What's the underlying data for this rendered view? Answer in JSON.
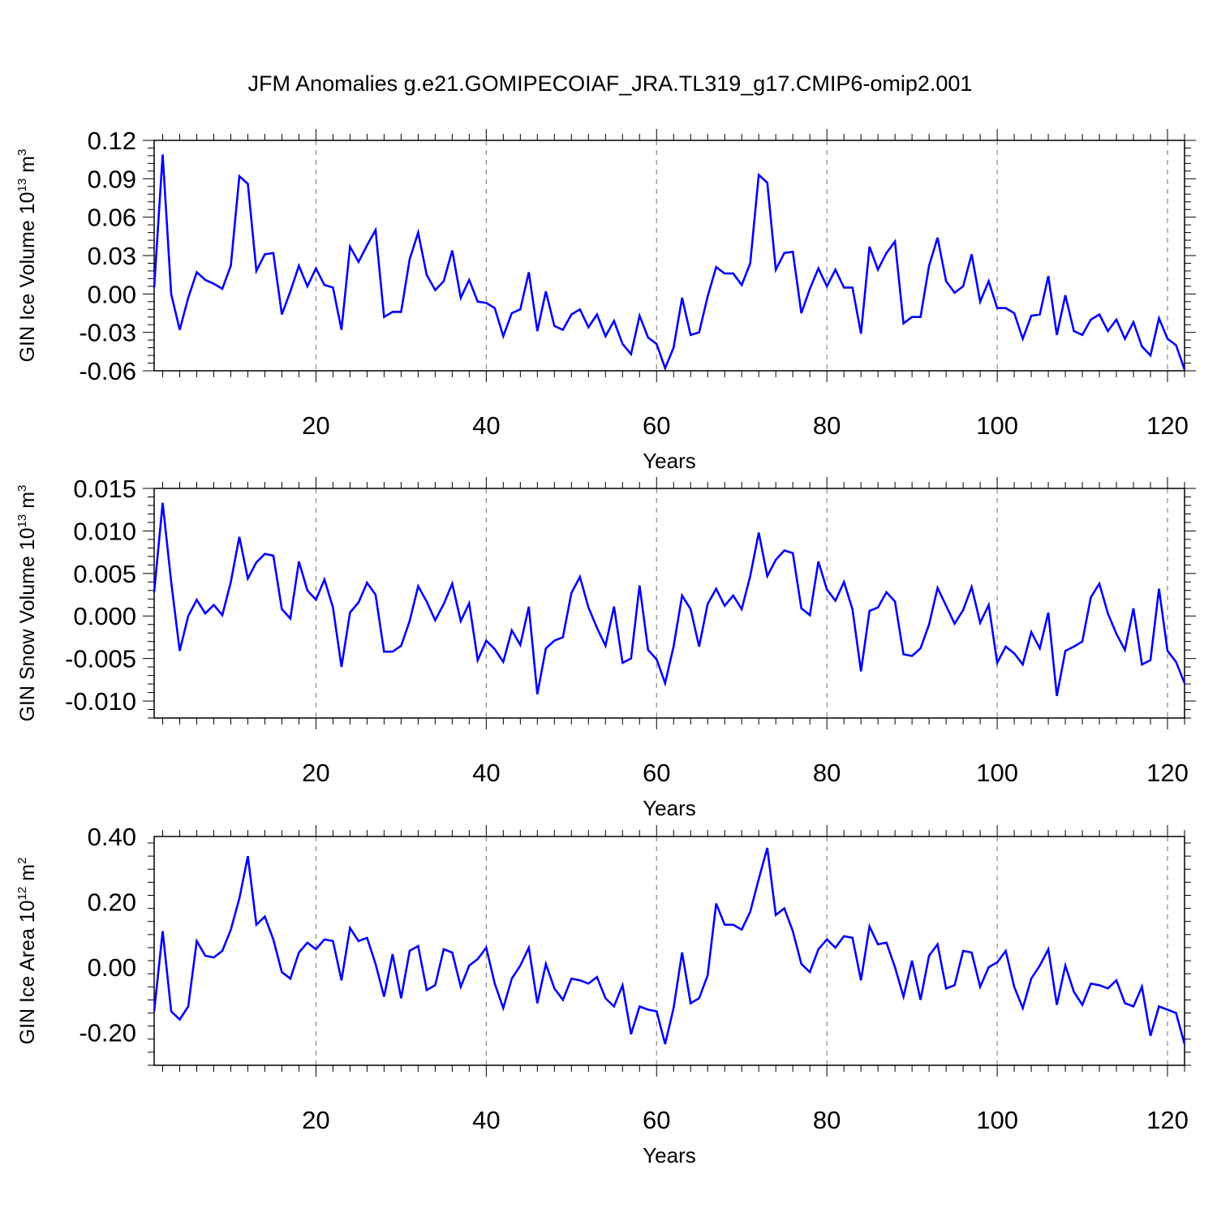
{
  "figure_title": "JFM Anomalies g.e21.GOMIPECOIAF_JRA.TL319_g17.CMIP6-omip2.001",
  "line_color": "#0000ff",
  "chart_data": [
    {
      "type": "line",
      "title": "",
      "xlabel": "Years",
      "ylabel_main": "GIN Ice Volume 10",
      "ylabel_exp": "13",
      "ylabel_unit": " m",
      "ylabel_unit_exp": "3",
      "xlim": [
        1,
        122
      ],
      "ylim": [
        -0.06,
        0.12
      ],
      "xticks": [
        20,
        40,
        60,
        80,
        100,
        120
      ],
      "xtick_labels": [
        "20",
        "40",
        "60",
        "80",
        "100",
        "120"
      ],
      "yticks": [
        -0.06,
        -0.03,
        0.0,
        0.03,
        0.06,
        0.09,
        0.12
      ],
      "ytick_labels": [
        "-0.06",
        "-0.03",
        "0.00",
        "0.03",
        "0.06",
        "0.09",
        "0.12"
      ],
      "grid_x": true,
      "series": [
        {
          "name": "GIN Ice Volume",
          "values": [
            0.005,
            0.109,
            0.0,
            -0.028,
            -0.003,
            0.017,
            0.011,
            0.008,
            0.004,
            0.022,
            0.092,
            0.086,
            0.018,
            0.031,
            0.032,
            -0.016,
            0.002,
            0.022,
            0.006,
            0.02,
            0.007,
            0.005,
            -0.028,
            0.037,
            0.025,
            0.038,
            0.05,
            -0.018,
            -0.014,
            -0.014,
            0.027,
            0.048,
            0.015,
            0.003,
            0.01,
            0.034,
            -0.003,
            0.011,
            -0.006,
            -0.007,
            -0.011,
            -0.033,
            -0.015,
            -0.012,
            0.017,
            -0.029,
            0.002,
            -0.025,
            -0.028,
            -0.016,
            -0.012,
            -0.026,
            -0.016,
            -0.033,
            -0.021,
            -0.039,
            -0.047,
            -0.017,
            -0.034,
            -0.039,
            -0.058,
            -0.042,
            -0.003,
            -0.032,
            -0.03,
            -0.002,
            0.021,
            0.016,
            0.016,
            0.007,
            0.024,
            0.093,
            0.087,
            0.019,
            0.032,
            0.033,
            -0.015,
            0.004,
            0.02,
            0.006,
            0.019,
            0.005,
            0.005,
            -0.031,
            0.037,
            0.019,
            0.032,
            0.041,
            -0.023,
            -0.018,
            -0.018,
            0.022,
            0.044,
            0.01,
            0.001,
            0.006,
            0.031,
            -0.006,
            0.01,
            -0.011,
            -0.011,
            -0.015,
            -0.035,
            -0.017,
            -0.016,
            0.014,
            -0.032,
            -0.001,
            -0.029,
            -0.032,
            -0.02,
            -0.016,
            -0.029,
            -0.02,
            -0.035,
            -0.022,
            -0.041,
            -0.048,
            -0.019,
            -0.035,
            -0.04,
            -0.059
          ]
        }
      ]
    },
    {
      "type": "line",
      "title": "",
      "xlabel": "Years",
      "ylabel_main": "GIN Snow Volume 10",
      "ylabel_exp": "13",
      "ylabel_unit": " m",
      "ylabel_unit_exp": "3",
      "xlim": [
        1,
        122
      ],
      "ylim": [
        -0.012,
        0.015
      ],
      "xticks": [
        20,
        40,
        60,
        80,
        100,
        120
      ],
      "xtick_labels": [
        "20",
        "40",
        "60",
        "80",
        "100",
        "120"
      ],
      "yticks": [
        -0.01,
        -0.005,
        0.0,
        0.005,
        0.01,
        0.015
      ],
      "ytick_labels": [
        "-0.010",
        "-0.005",
        "0.000",
        "0.005",
        "0.010",
        "0.015"
      ],
      "grid_x": true,
      "series": [
        {
          "name": "GIN Snow Volume",
          "values": [
            0.0028,
            0.0133,
            0.004,
            -0.0041,
            0.0,
            0.0019,
            0.0003,
            0.0013,
            0.0001,
            0.004,
            0.0093,
            0.0044,
            0.0063,
            0.0073,
            0.0071,
            0.0008,
            -0.0003,
            0.0064,
            0.003,
            0.0019,
            0.0043,
            0.001,
            -0.006,
            0.0004,
            0.0016,
            0.0039,
            0.0025,
            -0.0042,
            -0.0042,
            -0.0035,
            -0.0006,
            0.0035,
            0.0017,
            -0.0005,
            0.0014,
            0.0038,
            -0.0006,
            0.0015,
            -0.0052,
            -0.0029,
            -0.0039,
            -0.0054,
            -0.0017,
            -0.0034,
            0.0011,
            -0.0092,
            -0.0038,
            -0.0029,
            -0.0025,
            0.0027,
            0.0046,
            0.001,
            -0.0014,
            -0.0035,
            0.0011,
            -0.0055,
            -0.005,
            0.0036,
            -0.004,
            -0.0051,
            -0.0079,
            -0.0036,
            0.0024,
            0.0008,
            -0.0036,
            0.0014,
            0.0032,
            0.0012,
            0.0024,
            0.0008,
            0.0047,
            0.0098,
            0.0047,
            0.0066,
            0.0077,
            0.0074,
            0.0009,
            0.0001,
            0.0064,
            0.0031,
            0.0018,
            0.004,
            0.0008,
            -0.0065,
            0.0006,
            0.001,
            0.0028,
            0.0017,
            -0.0045,
            -0.0047,
            -0.0038,
            -0.001,
            0.0033,
            0.0012,
            -0.0009,
            0.0007,
            0.0034,
            -0.0008,
            0.0013,
            -0.0055,
            -0.0036,
            -0.0044,
            -0.0057,
            -0.0019,
            -0.0038,
            0.0004,
            -0.0094,
            -0.0041,
            -0.0036,
            -0.003,
            0.0022,
            0.0038,
            0.0003,
            -0.0021,
            -0.004,
            0.0009,
            -0.0057,
            -0.0052,
            0.0032,
            -0.0041,
            -0.0054,
            -0.0079
          ]
        }
      ]
    },
    {
      "type": "line",
      "title": "",
      "xlabel": "Years",
      "ylabel_main": "GIN Ice Area 10",
      "ylabel_exp": "12",
      "ylabel_unit": " m",
      "ylabel_unit_exp": "2",
      "xlim": [
        1,
        122
      ],
      "ylim": [
        -0.3,
        0.4
      ],
      "xticks": [
        20,
        40,
        60,
        80,
        100,
        120
      ],
      "xtick_labels": [
        "20",
        "40",
        "60",
        "80",
        "100",
        "120"
      ],
      "yticks": [
        -0.2,
        0.0,
        0.2,
        0.4
      ],
      "ytick_labels": [
        "-0.20",
        "0.00",
        "0.20",
        "0.40"
      ],
      "grid_x": true,
      "series": [
        {
          "name": "GIN Ice Area",
          "values": [
            -0.135,
            0.11,
            -0.135,
            -0.16,
            -0.12,
            0.08,
            0.035,
            0.03,
            0.05,
            0.115,
            0.21,
            0.34,
            0.13,
            0.155,
            0.085,
            -0.015,
            -0.035,
            0.045,
            0.075,
            0.055,
            0.085,
            0.08,
            -0.04,
            0.12,
            0.08,
            0.09,
            0.01,
            -0.09,
            0.04,
            -0.095,
            0.05,
            0.065,
            -0.07,
            -0.055,
            0.055,
            0.045,
            -0.06,
            0.005,
            0.025,
            0.06,
            -0.05,
            -0.125,
            -0.035,
            0.005,
            0.06,
            -0.11,
            0.01,
            -0.065,
            -0.1,
            -0.035,
            -0.04,
            -0.05,
            -0.03,
            -0.095,
            -0.12,
            -0.055,
            -0.205,
            -0.12,
            -0.13,
            -0.135,
            -0.235,
            -0.125,
            0.045,
            -0.11,
            -0.095,
            -0.025,
            0.195,
            0.13,
            0.13,
            0.115,
            0.17,
            0.27,
            0.365,
            0.16,
            0.18,
            0.11,
            0.01,
            -0.015,
            0.055,
            0.085,
            0.06,
            0.095,
            0.09,
            -0.04,
            0.125,
            0.07,
            0.075,
            0.0,
            -0.09,
            0.02,
            -0.1,
            0.035,
            0.07,
            -0.065,
            -0.055,
            0.05,
            0.045,
            -0.06,
            0.0,
            0.015,
            0.05,
            -0.06,
            -0.125,
            -0.035,
            0.005,
            0.055,
            -0.115,
            0.005,
            -0.075,
            -0.115,
            -0.05,
            -0.055,
            -0.065,
            -0.04,
            -0.11,
            -0.12,
            -0.06,
            -0.21,
            -0.12,
            -0.13,
            -0.14,
            -0.235
          ]
        }
      ]
    }
  ]
}
